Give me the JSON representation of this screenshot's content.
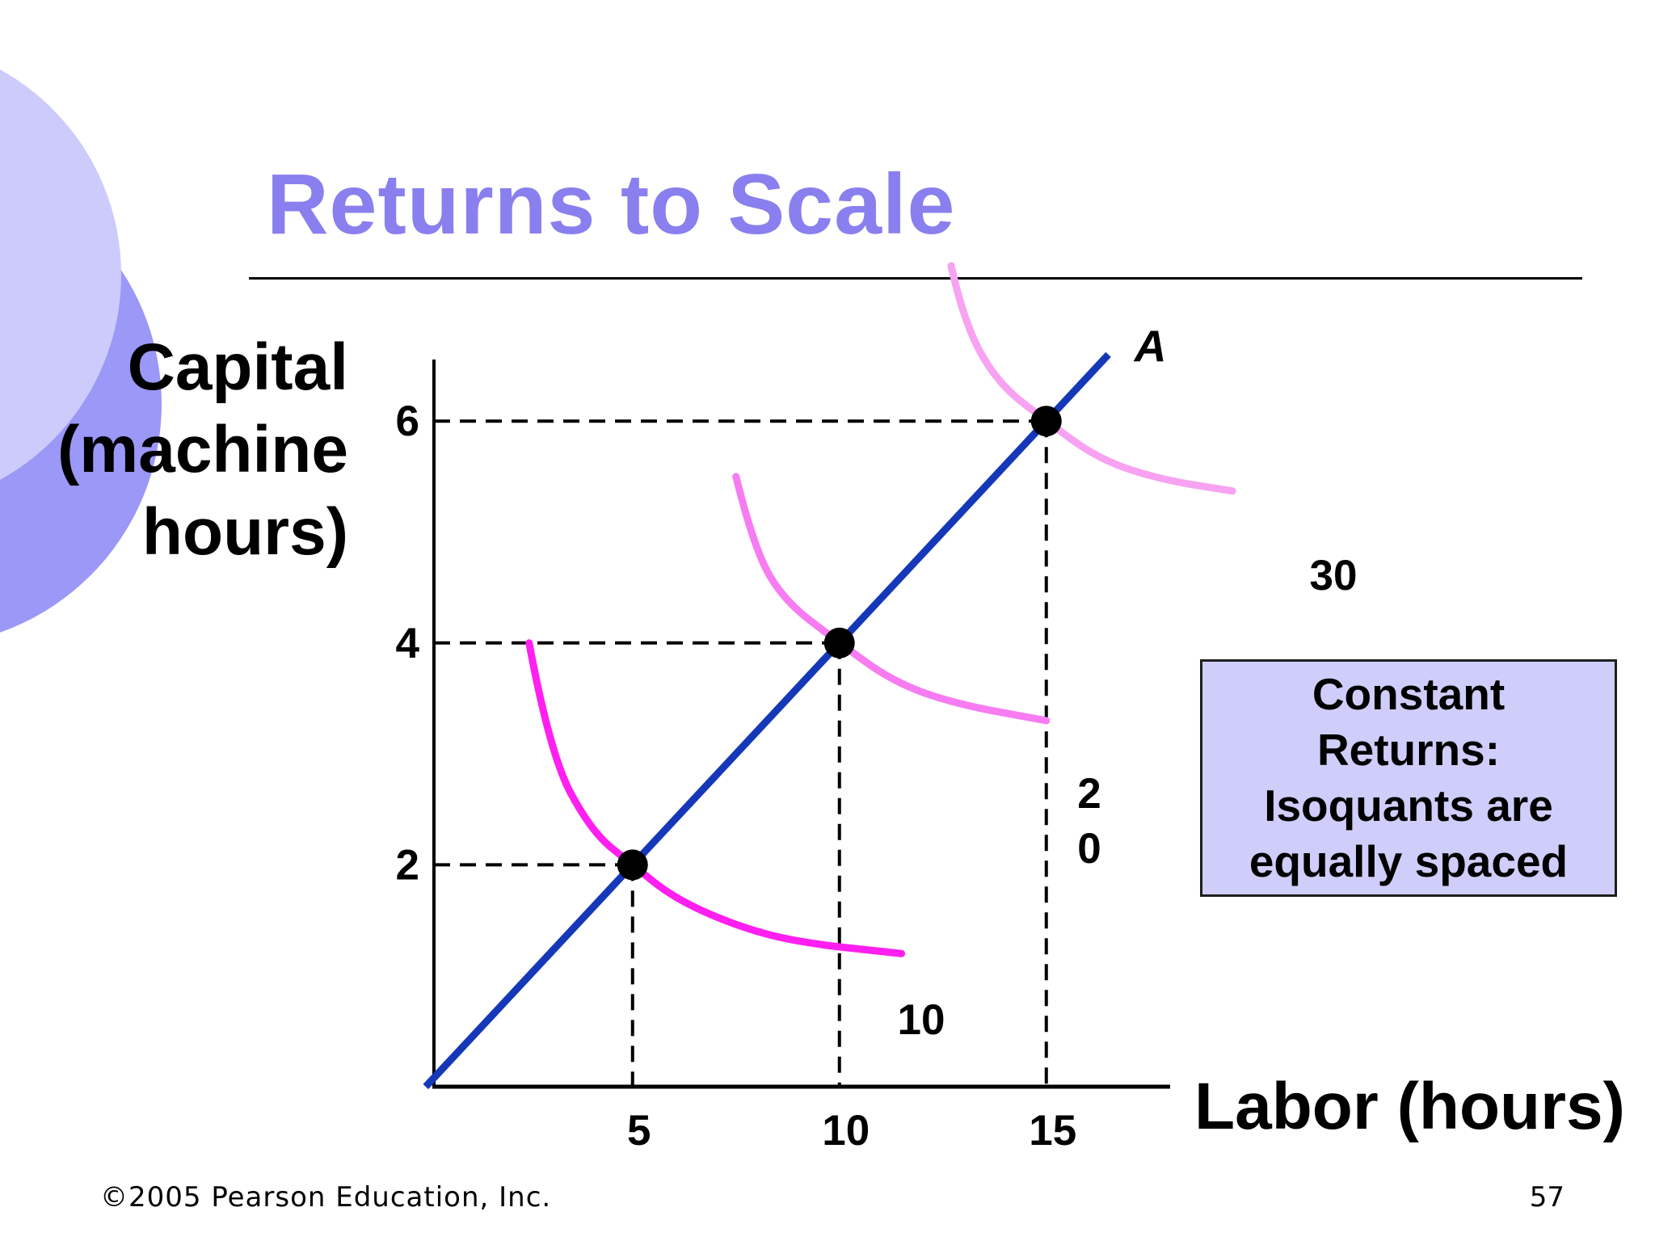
{
  "title": "Returns to Scale",
  "y_axis_label": [
    "Capital",
    "(machine",
    "hours)"
  ],
  "x_axis_label": "Labor (hours)",
  "callout": [
    "Constant",
    "Returns:",
    "Isoquants are",
    "equally spaced"
  ],
  "footer": {
    "copyright": "©2005 Pearson Education, Inc.",
    "slide_number": "57"
  },
  "colors": {
    "title": "#8a7fee",
    "ray": "#1538b8",
    "isoquant_10": "#ff1ff0",
    "isoquant_20": "#f77cf1",
    "isoquant_30": "#f7a3f2",
    "callout_fill": "#cfcefb",
    "decor_light": "#cccbfc",
    "decor_dark": "#9b98f7"
  },
  "chart_data": {
    "type": "line",
    "xlabel": "Labor (hours)",
    "ylabel": "Capital (machine hours)",
    "xlim": [
      0,
      20
    ],
    "ylim": [
      0,
      7
    ],
    "x_ticks": [
      "5",
      "10",
      "15"
    ],
    "y_ticks": [
      "2",
      "4",
      "6"
    ],
    "ray": {
      "label": "A",
      "points": [
        [
          0,
          0
        ],
        [
          16.5,
          6.6
        ]
      ]
    },
    "points": [
      [
        5,
        2
      ],
      [
        10,
        4
      ],
      [
        15,
        6
      ]
    ],
    "series": [
      {
        "name": "10",
        "label_lines": [
          "10"
        ],
        "points": [
          [
            2.5,
            4.0
          ],
          [
            3.0,
            3.0
          ],
          [
            4.0,
            2.3
          ],
          [
            5.0,
            2.0
          ],
          [
            6.0,
            1.7
          ],
          [
            7.5,
            1.45
          ],
          [
            9.0,
            1.3
          ],
          [
            11.5,
            1.2
          ]
        ]
      },
      {
        "name": "20",
        "label_lines": [
          "2",
          "0"
        ],
        "points": [
          [
            7.5,
            5.5
          ],
          [
            7.9,
            4.9
          ],
          [
            8.6,
            4.4
          ],
          [
            10.0,
            4.0
          ],
          [
            11.3,
            3.65
          ],
          [
            12.8,
            3.45
          ],
          [
            15.0,
            3.3
          ]
        ]
      },
      {
        "name": "30",
        "label_lines": [
          "30"
        ],
        "points": [
          [
            12.7,
            7.4
          ],
          [
            13.0,
            6.9
          ],
          [
            13.8,
            6.35
          ],
          [
            15.0,
            6.0
          ],
          [
            16.3,
            5.65
          ],
          [
            17.8,
            5.47
          ],
          [
            19.5,
            5.37
          ]
        ]
      }
    ]
  }
}
